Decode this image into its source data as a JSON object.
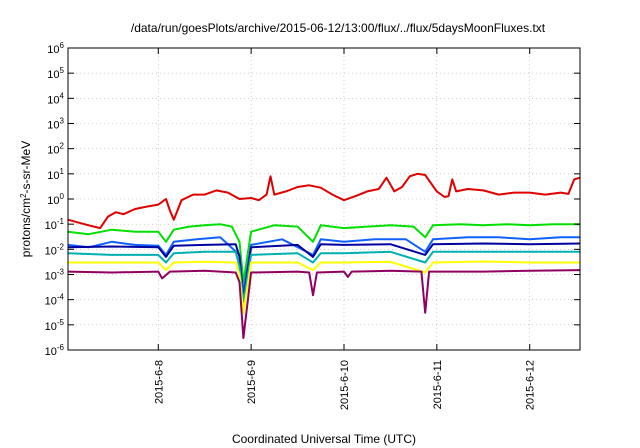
{
  "chart_data": {
    "type": "line",
    "title": "/data/run/goesPlots/archive/2015-06-12/13:00/flux/../flux/5daysMoonFluxes.txt",
    "xlabel": "Coordinated Universal Time (UTC)",
    "ylabel": {
      "base": "protons/cm",
      "sup": "2",
      "rest": "-s-sr-MeV"
    },
    "yscale": "log",
    "xlim": [
      "2015-06-07T00:40",
      "2015-06-12T13:00"
    ],
    "ylim": [
      1e-06,
      1000000.0
    ],
    "grid": true,
    "x_ticks": [
      {
        "value": "2015-06-08T00:00",
        "label": "2015-6-8"
      },
      {
        "value": "2015-06-09T00:00",
        "label": "2015-6-9"
      },
      {
        "value": "2015-06-10T00:00",
        "label": "2015-6-10"
      },
      {
        "value": "2015-06-11T00:00",
        "label": "2015-6-11"
      },
      {
        "value": "2015-06-12T00:00",
        "label": "2015-6-12"
      }
    ],
    "y_ticks": [
      {
        "value": 1e-06,
        "base": "10",
        "exp": "-6"
      },
      {
        "value": 1e-05,
        "base": "10",
        "exp": "-5"
      },
      {
        "value": 0.0001,
        "base": "10",
        "exp": "-4"
      },
      {
        "value": 0.001,
        "base": "10",
        "exp": "-3"
      },
      {
        "value": 0.01,
        "base": "10",
        "exp": "-2"
      },
      {
        "value": 0.1,
        "base": "10",
        "exp": "-1"
      },
      {
        "value": 1,
        "base": "10",
        "exp": "0"
      },
      {
        "value": 10,
        "base": "10",
        "exp": "1"
      },
      {
        "value": 100,
        "base": "10",
        "exp": "2"
      },
      {
        "value": 1000,
        "base": "10",
        "exp": "3"
      },
      {
        "value": 10000,
        "base": "10",
        "exp": "4"
      },
      {
        "value": 100000,
        "base": "10",
        "exp": "5"
      },
      {
        "value": 1000000,
        "base": "10",
        "exp": "6"
      }
    ],
    "series": [
      {
        "color": "#e00000",
        "values": [
          [
            "2015-06-07T00:40",
            0.15
          ],
          [
            "2015-06-07T03:00",
            0.12
          ],
          [
            "2015-06-07T06:00",
            0.09
          ],
          [
            "2015-06-07T09:00",
            0.07
          ],
          [
            "2015-06-07T11:00",
            0.2
          ],
          [
            "2015-06-07T13:00",
            0.3
          ],
          [
            "2015-06-07T15:00",
            0.25
          ],
          [
            "2015-06-07T18:00",
            0.4
          ],
          [
            "2015-06-07T21:00",
            0.5
          ],
          [
            "2015-06-08T00:00",
            0.6
          ],
          [
            "2015-06-08T02:00",
            1.0
          ],
          [
            "2015-06-08T03:00",
            0.35
          ],
          [
            "2015-06-08T04:00",
            0.15
          ],
          [
            "2015-06-08T06:00",
            0.9
          ],
          [
            "2015-06-08T09:00",
            1.5
          ],
          [
            "2015-06-08T12:00",
            1.5
          ],
          [
            "2015-06-08T15:00",
            2.2
          ],
          [
            "2015-06-08T18:00",
            1.8
          ],
          [
            "2015-06-08T21:00",
            1.0
          ],
          [
            "2015-06-09T00:00",
            1.1
          ],
          [
            "2015-06-09T02:00",
            0.9
          ],
          [
            "2015-06-09T04:00",
            1.5
          ],
          [
            "2015-06-09T05:00",
            8.0
          ],
          [
            "2015-06-09T06:00",
            1.5
          ],
          [
            "2015-06-09T09:00",
            2.0
          ],
          [
            "2015-06-09T12:00",
            3.0
          ],
          [
            "2015-06-09T15:00",
            3.5
          ],
          [
            "2015-06-09T18:00",
            2.8
          ],
          [
            "2015-06-09T21:00",
            1.5
          ],
          [
            "2015-06-10T00:00",
            0.9
          ],
          [
            "2015-06-10T03:00",
            1.3
          ],
          [
            "2015-06-10T06:00",
            2.0
          ],
          [
            "2015-06-10T09:00",
            2.5
          ],
          [
            "2015-06-10T11:00",
            7.0
          ],
          [
            "2015-06-10T13:00",
            2.0
          ],
          [
            "2015-06-10T15:00",
            3.0
          ],
          [
            "2015-06-10T17:00",
            8.0
          ],
          [
            "2015-06-10T19:00",
            10.0
          ],
          [
            "2015-06-10T21:00",
            9.0
          ],
          [
            "2015-06-11T00:00",
            2.0
          ],
          [
            "2015-06-11T02:00",
            1.2
          ],
          [
            "2015-06-11T03:00",
            1.3
          ],
          [
            "2015-06-11T04:00",
            6.0
          ],
          [
            "2015-06-11T05:00",
            2.0
          ],
          [
            "2015-06-11T08:00",
            2.5
          ],
          [
            "2015-06-11T12:00",
            2.2
          ],
          [
            "2015-06-11T16:00",
            1.5
          ],
          [
            "2015-06-11T20:00",
            1.8
          ],
          [
            "2015-06-12T00:00",
            1.8
          ],
          [
            "2015-06-12T04:00",
            1.5
          ],
          [
            "2015-06-12T08:00",
            1.8
          ],
          [
            "2015-06-12T10:00",
            1.6
          ],
          [
            "2015-06-12T11:30",
            6.0
          ],
          [
            "2015-06-12T13:00",
            7.0
          ]
        ]
      },
      {
        "color": "#00e000",
        "values": [
          [
            "2015-06-07T00:40",
            0.05
          ],
          [
            "2015-06-07T06:00",
            0.04
          ],
          [
            "2015-06-07T12:00",
            0.06
          ],
          [
            "2015-06-07T18:00",
            0.05
          ],
          [
            "2015-06-08T00:00",
            0.05
          ],
          [
            "2015-06-08T02:00",
            0.02
          ],
          [
            "2015-06-08T04:00",
            0.06
          ],
          [
            "2015-06-08T08:00",
            0.08
          ],
          [
            "2015-06-08T12:00",
            0.09
          ],
          [
            "2015-06-08T16:00",
            0.1
          ],
          [
            "2015-06-08T19:00",
            0.08
          ],
          [
            "2015-06-08T21:00",
            0.02
          ],
          [
            "2015-06-08T22:00",
            0.0005
          ],
          [
            "2015-06-09T00:00",
            0.05
          ],
          [
            "2015-06-09T06:00",
            0.09
          ],
          [
            "2015-06-09T12:00",
            0.08
          ],
          [
            "2015-06-09T16:00",
            0.02
          ],
          [
            "2015-06-09T18:00",
            0.09
          ],
          [
            "2015-06-10T00:00",
            0.07
          ],
          [
            "2015-06-10T06:00",
            0.08
          ],
          [
            "2015-06-10T12:00",
            0.09
          ],
          [
            "2015-06-10T18:00",
            0.08
          ],
          [
            "2015-06-10T21:00",
            0.03
          ],
          [
            "2015-06-10T23:00",
            0.09
          ],
          [
            "2015-06-11T06:00",
            0.1
          ],
          [
            "2015-06-11T12:00",
            0.09
          ],
          [
            "2015-06-11T18:00",
            0.1
          ],
          [
            "2015-06-12T00:00",
            0.09
          ],
          [
            "2015-06-12T06:00",
            0.1
          ],
          [
            "2015-06-12T13:00",
            0.1
          ]
        ]
      },
      {
        "color": "#1060ff",
        "values": [
          [
            "2015-06-07T00:40",
            0.015
          ],
          [
            "2015-06-07T06:00",
            0.012
          ],
          [
            "2015-06-07T12:00",
            0.02
          ],
          [
            "2015-06-07T18:00",
            0.015
          ],
          [
            "2015-06-08T00:00",
            0.014
          ],
          [
            "2015-06-08T02:00",
            0.006
          ],
          [
            "2015-06-08T04:00",
            0.02
          ],
          [
            "2015-06-08T10:00",
            0.025
          ],
          [
            "2015-06-08T16:00",
            0.03
          ],
          [
            "2015-06-08T21:00",
            0.006
          ],
          [
            "2015-06-08T22:00",
            0.0002
          ],
          [
            "2015-06-09T00:00",
            0.015
          ],
          [
            "2015-06-09T08:00",
            0.025
          ],
          [
            "2015-06-09T16:00",
            0.006
          ],
          [
            "2015-06-09T18:00",
            0.025
          ],
          [
            "2015-06-10T00:00",
            0.02
          ],
          [
            "2015-06-10T08:00",
            0.025
          ],
          [
            "2015-06-10T16:00",
            0.025
          ],
          [
            "2015-06-10T21:00",
            0.008
          ],
          [
            "2015-06-10T23:00",
            0.025
          ],
          [
            "2015-06-11T08:00",
            0.03
          ],
          [
            "2015-06-11T16:00",
            0.03
          ],
          [
            "2015-06-12T00:00",
            0.025
          ],
          [
            "2015-06-12T08:00",
            0.03
          ],
          [
            "2015-06-12T13:00",
            0.03
          ]
        ]
      },
      {
        "color": "#0000a0",
        "values": [
          [
            "2015-06-07T00:40",
            0.012
          ],
          [
            "2015-06-07T12:00",
            0.013
          ],
          [
            "2015-06-08T00:00",
            0.012
          ],
          [
            "2015-06-08T02:00",
            0.005
          ],
          [
            "2015-06-08T04:00",
            0.014
          ],
          [
            "2015-06-08T12:00",
            0.015
          ],
          [
            "2015-06-08T20:00",
            0.016
          ],
          [
            "2015-06-08T21:00",
            0.005
          ],
          [
            "2015-06-08T22:00",
            0.0001
          ],
          [
            "2015-06-09T00:00",
            0.012
          ],
          [
            "2015-06-09T12:00",
            0.015
          ],
          [
            "2015-06-09T16:00",
            0.005
          ],
          [
            "2015-06-09T18:00",
            0.016
          ],
          [
            "2015-06-10T00:00",
            0.015
          ],
          [
            "2015-06-10T12:00",
            0.016
          ],
          [
            "2015-06-10T21:00",
            0.006
          ],
          [
            "2015-06-10T23:00",
            0.016
          ],
          [
            "2015-06-11T12:00",
            0.017
          ],
          [
            "2015-06-12T00:00",
            0.016
          ],
          [
            "2015-06-12T13:00",
            0.017
          ]
        ]
      },
      {
        "color": "#00b0b0",
        "values": [
          [
            "2015-06-07T00:40",
            0.007
          ],
          [
            "2015-06-07T12:00",
            0.006
          ],
          [
            "2015-06-08T00:00",
            0.006
          ],
          [
            "2015-06-08T02:00",
            0.003
          ],
          [
            "2015-06-08T04:00",
            0.007
          ],
          [
            "2015-06-08T12:00",
            0.008
          ],
          [
            "2015-06-08T20:00",
            0.008
          ],
          [
            "2015-06-08T21:00",
            0.002
          ],
          [
            "2015-06-08T22:00",
            8e-05
          ],
          [
            "2015-06-09T00:00",
            0.006
          ],
          [
            "2015-06-09T12:00",
            0.007
          ],
          [
            "2015-06-09T16:00",
            0.003
          ],
          [
            "2015-06-09T18:00",
            0.007
          ],
          [
            "2015-06-10T00:00",
            0.007
          ],
          [
            "2015-06-10T12:00",
            0.008
          ],
          [
            "2015-06-10T21:00",
            0.003
          ],
          [
            "2015-06-10T23:00",
            0.008
          ],
          [
            "2015-06-11T12:00",
            0.008
          ],
          [
            "2015-06-12T00:00",
            0.008
          ],
          [
            "2015-06-12T13:00",
            0.008
          ]
        ]
      },
      {
        "color": "#ffff00",
        "values": [
          [
            "2015-06-07T00:40",
            0.003
          ],
          [
            "2015-06-07T12:00",
            0.003
          ],
          [
            "2015-06-08T00:00",
            0.003
          ],
          [
            "2015-06-08T02:00",
            0.0015
          ],
          [
            "2015-06-08T04:00",
            0.003
          ],
          [
            "2015-06-08T12:00",
            0.0032
          ],
          [
            "2015-06-08T20:00",
            0.003
          ],
          [
            "2015-06-08T21:00",
            0.001
          ],
          [
            "2015-06-08T22:00",
            3e-05
          ],
          [
            "2015-06-09T00:00",
            0.003
          ],
          [
            "2015-06-09T12:00",
            0.003
          ],
          [
            "2015-06-09T16:00",
            0.0015
          ],
          [
            "2015-06-09T18:00",
            0.003
          ],
          [
            "2015-06-10T00:00",
            0.003
          ],
          [
            "2015-06-10T12:00",
            0.0032
          ],
          [
            "2015-06-10T21:00",
            0.0012
          ],
          [
            "2015-06-10T23:00",
            0.003
          ],
          [
            "2015-06-11T12:00",
            0.0033
          ],
          [
            "2015-06-12T00:00",
            0.003
          ],
          [
            "2015-06-12T13:00",
            0.003
          ]
        ]
      },
      {
        "color": "#900060",
        "values": [
          [
            "2015-06-07T00:40",
            0.0013
          ],
          [
            "2015-06-07T12:00",
            0.0012
          ],
          [
            "2015-06-08T00:00",
            0.0013
          ],
          [
            "2015-06-08T01:00",
            0.0007
          ],
          [
            "2015-06-08T03:00",
            0.0013
          ],
          [
            "2015-06-08T12:00",
            0.0014
          ],
          [
            "2015-06-08T20:00",
            0.0012
          ],
          [
            "2015-06-08T21:00",
            0.0005
          ],
          [
            "2015-06-08T22:00",
            3e-06
          ],
          [
            "2015-06-09T00:00",
            0.0012
          ],
          [
            "2015-06-09T12:00",
            0.0013
          ],
          [
            "2015-06-09T15:00",
            0.0012
          ],
          [
            "2015-06-09T16:00",
            0.00015
          ],
          [
            "2015-06-09T17:00",
            0.0012
          ],
          [
            "2015-06-10T00:00",
            0.0013
          ],
          [
            "2015-06-10T01:00",
            0.0008
          ],
          [
            "2015-06-10T02:00",
            0.0013
          ],
          [
            "2015-06-10T12:00",
            0.0014
          ],
          [
            "2015-06-10T20:00",
            0.0013
          ],
          [
            "2015-06-10T21:00",
            3e-05
          ],
          [
            "2015-06-10T22:00",
            0.0013
          ],
          [
            "2015-06-11T12:00",
            0.0013
          ],
          [
            "2015-06-12T00:00",
            0.0014
          ],
          [
            "2015-06-12T13:00",
            0.0015
          ]
        ]
      }
    ]
  }
}
